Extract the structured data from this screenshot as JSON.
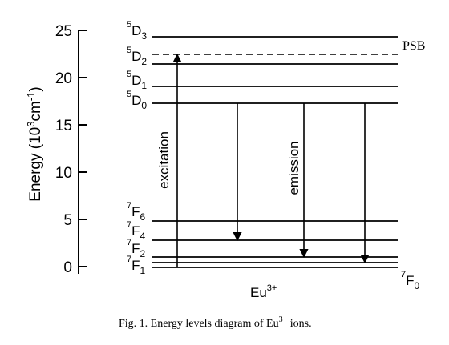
{
  "y_axis": {
    "label_base": "Energy (10",
    "label_sup": "3",
    "label_unit": "cm",
    "label_sup2": "-1",
    "label_close": ")",
    "ticks": [
      "0",
      "5",
      "10",
      "15",
      "20",
      "25"
    ]
  },
  "levels": {
    "d3": {
      "sup": "5",
      "base": "D",
      "sub": "3"
    },
    "d2": {
      "sup": "5",
      "base": "D",
      "sub": "2"
    },
    "d1": {
      "sup": "5",
      "base": "D",
      "sub": "1"
    },
    "d0": {
      "sup": "5",
      "base": "D",
      "sub": "0"
    },
    "f6": {
      "sup": "7",
      "base": "F",
      "sub": "6"
    },
    "f4": {
      "sup": "7",
      "base": "F",
      "sub": "4"
    },
    "f2": {
      "sup": "7",
      "base": "F",
      "sub": "2"
    },
    "f1": {
      "sup": "7",
      "base": "F",
      "sub": "1"
    },
    "f0": {
      "sup": "7",
      "base": "F",
      "sub": "0"
    }
  },
  "psb_label": "PSB",
  "excitation_label": "excitation",
  "emission_label": "emission",
  "ion": {
    "base": "Eu",
    "sup": "3+"
  },
  "caption": {
    "text": "Fig. 1. Energy levels diagram of Eu",
    "sup": "3+",
    "tail": " ions."
  }
}
